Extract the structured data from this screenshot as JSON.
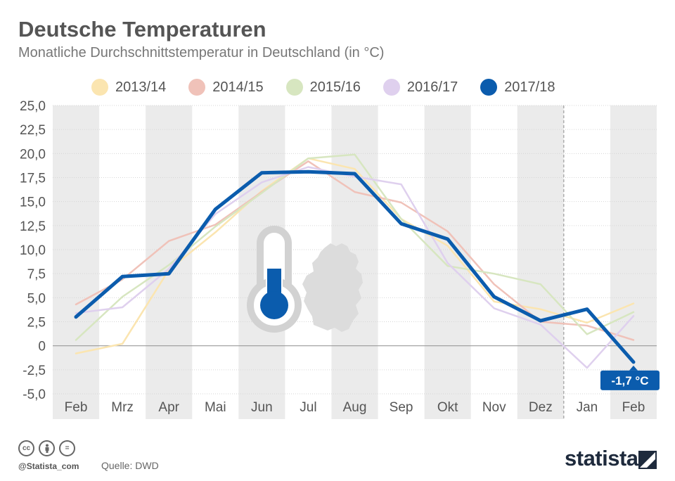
{
  "header": {
    "title": "Deutsche Temperaturen",
    "subtitle": "Monatliche Durchschnittstemperatur in Deutschland (in °C)"
  },
  "chart_data": {
    "type": "line",
    "title": "Deutsche Temperaturen",
    "subtitle": "Monatliche Durchschnittstemperatur in Deutschland (in °C)",
    "xlabel": "",
    "ylabel": "",
    "categories": [
      "Feb",
      "Mrz",
      "Apr",
      "Mai",
      "Jun",
      "Jul",
      "Aug",
      "Sep",
      "Okt",
      "Nov",
      "Dez",
      "Jan",
      "Feb"
    ],
    "ylim": [
      -5,
      25
    ],
    "yticks": [
      25,
      22.5,
      20,
      17.5,
      15,
      12.5,
      10,
      7.5,
      5,
      2.5,
      0,
      -2.5,
      -5
    ],
    "ytick_labels": [
      "25,0",
      "22,5",
      "20,0",
      "17,5",
      "15,0",
      "12,5",
      "10,0",
      "7,5",
      "5,0",
      "2,5",
      "0",
      "-2,5",
      "-5,0"
    ],
    "legend_position": "top",
    "series": [
      {
        "name": "2013/14",
        "color": "#fbe5b0",
        "values": [
          -0.8,
          0.2,
          7.9,
          11.8,
          16.1,
          19.5,
          18.4,
          13.2,
          10.4,
          4.6,
          3.8,
          2.4,
          4.4
        ]
      },
      {
        "name": "2014/15",
        "color": "#f0c2b9",
        "values": [
          4.3,
          6.9,
          10.9,
          12.6,
          16.0,
          19.2,
          16.0,
          14.9,
          11.9,
          6.4,
          2.5,
          2.1,
          0.6
        ]
      },
      {
        "name": "2015/16",
        "color": "#d7e6c0",
        "values": [
          0.6,
          5.1,
          8.4,
          12.4,
          15.9,
          19.5,
          19.9,
          13.2,
          8.3,
          7.5,
          6.4,
          1.2,
          3.5
        ]
      },
      {
        "name": "2016/17",
        "color": "#dfd0ee",
        "values": [
          3.4,
          4.0,
          8.0,
          13.7,
          17.0,
          18.6,
          17.6,
          16.8,
          8.6,
          3.9,
          2.2,
          -2.3,
          3.1
        ]
      },
      {
        "name": "2017/18",
        "color": "#0b5cad",
        "values": [
          3.0,
          7.2,
          7.5,
          14.2,
          18.0,
          18.1,
          17.9,
          12.7,
          11.1,
          5.1,
          2.6,
          3.8,
          -1.7
        ]
      }
    ],
    "annotation": "-1,7 °C"
  },
  "footer": {
    "icons": [
      "cc-icon",
      "by-icon",
      "nd-icon"
    ],
    "cc_label": "cc",
    "nd_label": "=",
    "handle": "@Statista_com",
    "source": "Quelle: DWD",
    "brand": "statista"
  }
}
